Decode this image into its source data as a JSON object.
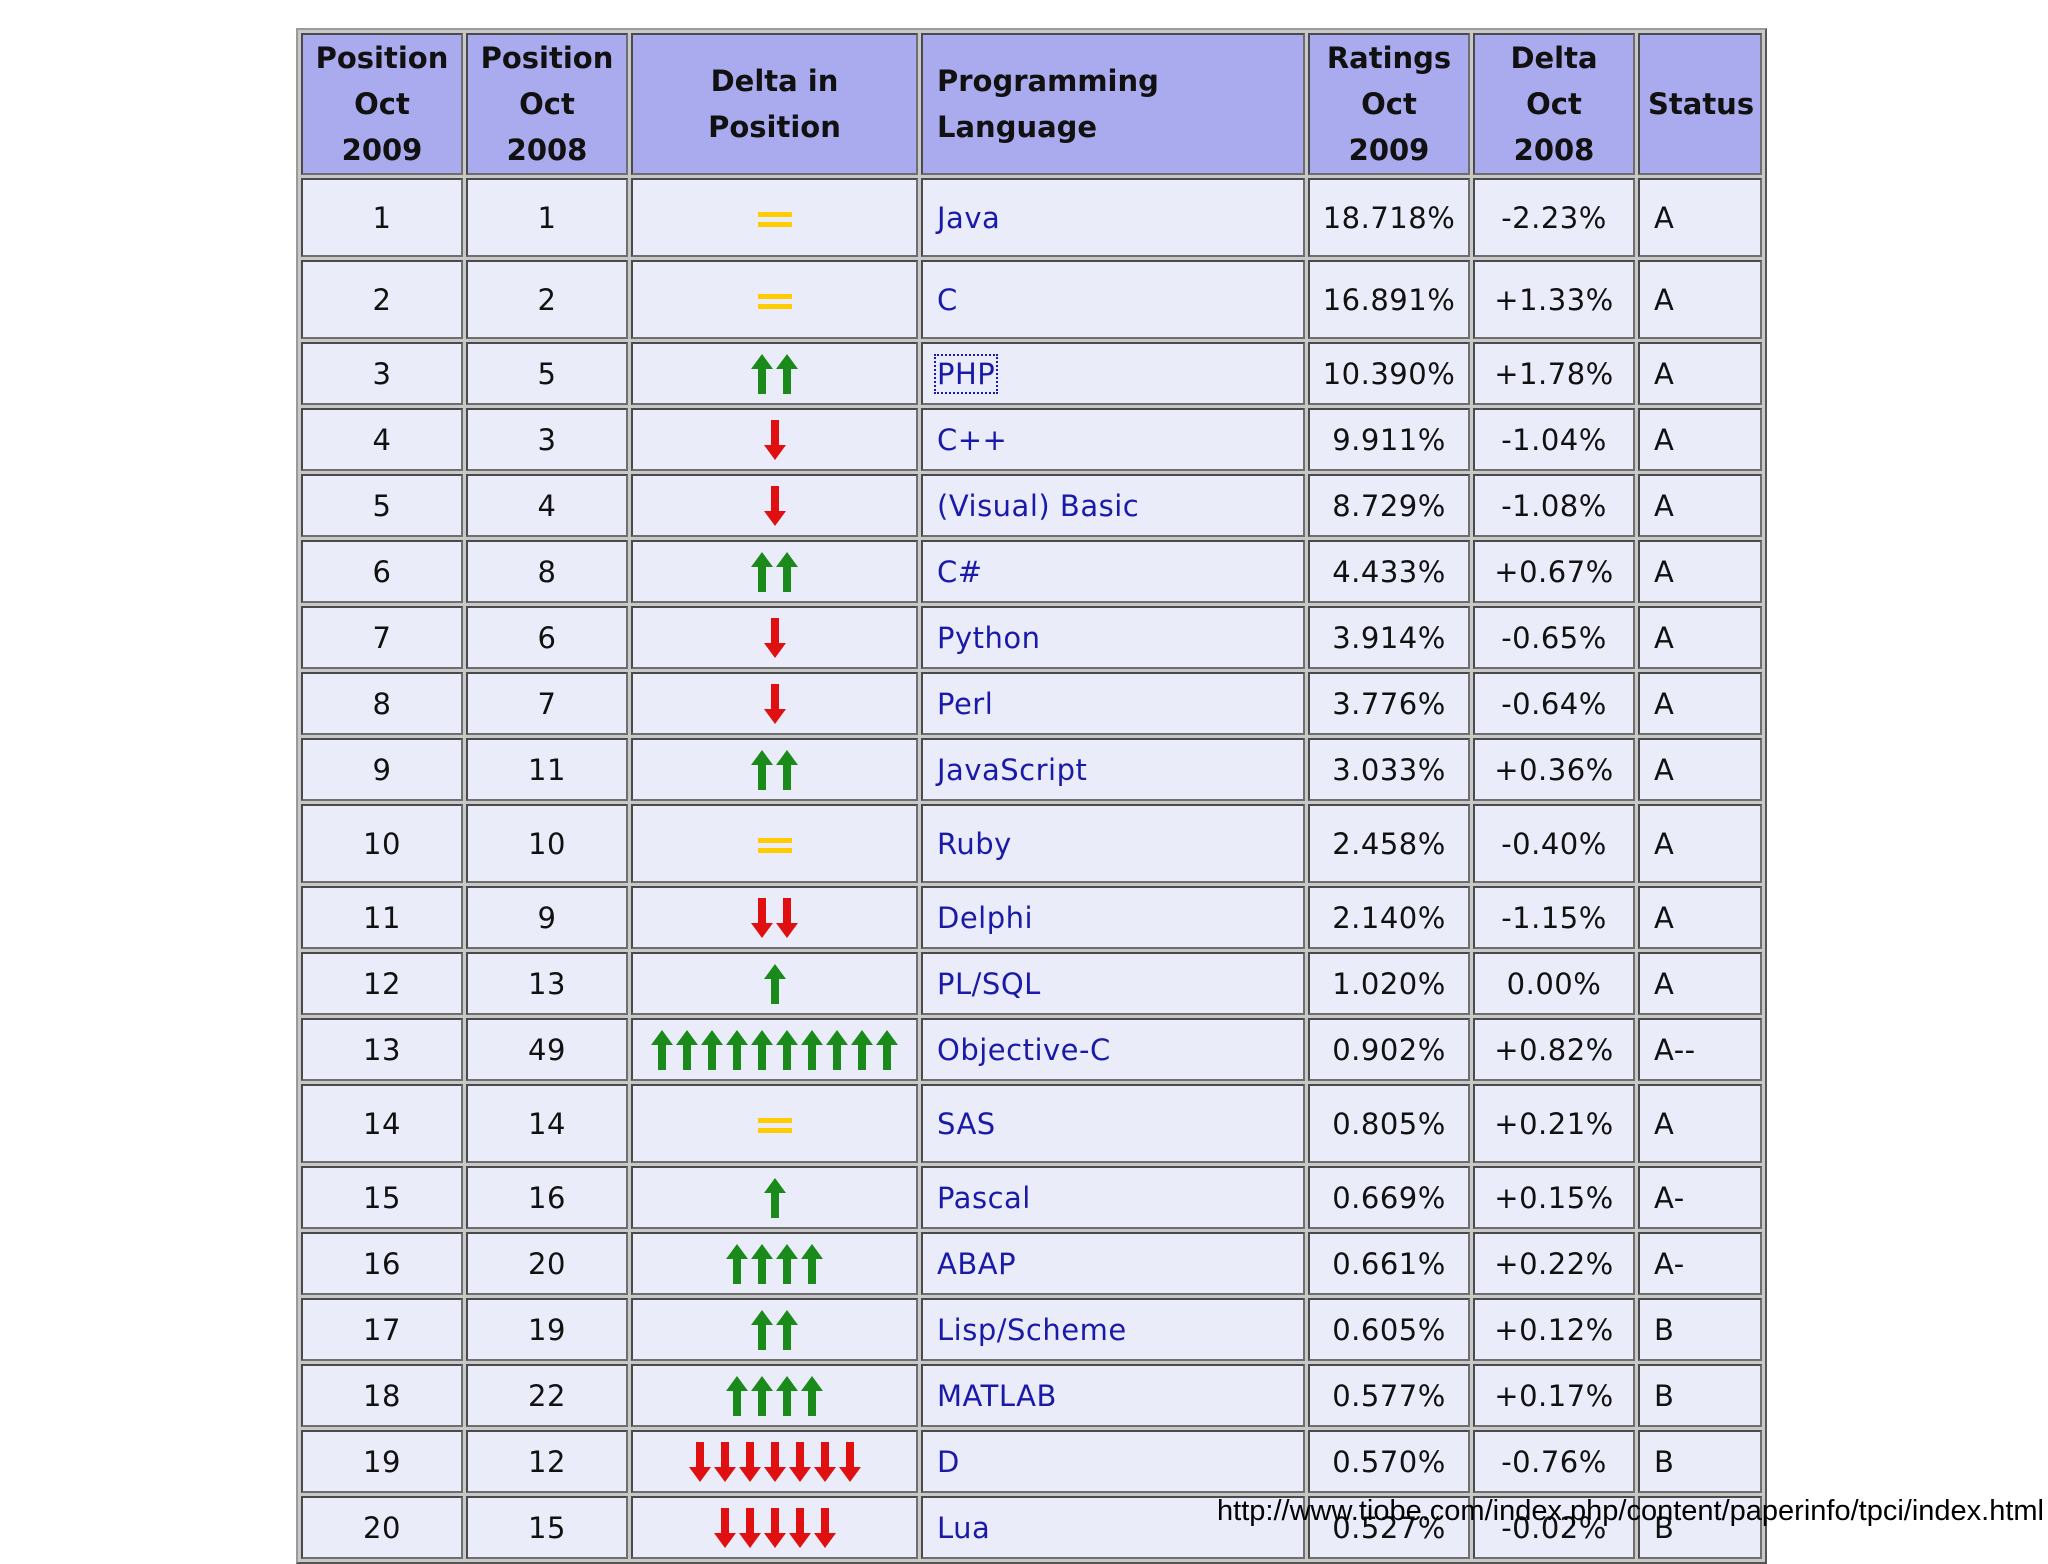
{
  "table": {
    "headers": [
      [
        "Position",
        "Oct 2009"
      ],
      [
        "Position",
        "Oct 2008"
      ],
      [
        "Delta in Position"
      ],
      [
        "Programming Language"
      ],
      [
        "Ratings",
        "Oct 2009"
      ],
      [
        "Delta",
        "Oct 2008"
      ],
      [
        "Status"
      ]
    ],
    "rows": [
      {
        "pos2009": "1",
        "pos2008": "1",
        "delta_icon": "equal",
        "delta_count": 1,
        "language": "Java",
        "rating": "18.718%",
        "delta": "-2.23%",
        "status": "A"
      },
      {
        "pos2009": "2",
        "pos2008": "2",
        "delta_icon": "equal",
        "delta_count": 1,
        "language": "C",
        "rating": "16.891%",
        "delta": "+1.33%",
        "status": "A"
      },
      {
        "pos2009": "3",
        "pos2008": "5",
        "delta_icon": "up",
        "delta_count": 2,
        "language": "PHP",
        "rating": "10.390%",
        "delta": "+1.78%",
        "status": "A",
        "focused": true
      },
      {
        "pos2009": "4",
        "pos2008": "3",
        "delta_icon": "down",
        "delta_count": 1,
        "language": "C++",
        "rating": "9.911%",
        "delta": "-1.04%",
        "status": "A"
      },
      {
        "pos2009": "5",
        "pos2008": "4",
        "delta_icon": "down",
        "delta_count": 1,
        "language": "(Visual) Basic",
        "rating": "8.729%",
        "delta": "-1.08%",
        "status": "A"
      },
      {
        "pos2009": "6",
        "pos2008": "8",
        "delta_icon": "up",
        "delta_count": 2,
        "language": "C#",
        "rating": "4.433%",
        "delta": "+0.67%",
        "status": "A"
      },
      {
        "pos2009": "7",
        "pos2008": "6",
        "delta_icon": "down",
        "delta_count": 1,
        "language": "Python",
        "rating": "3.914%",
        "delta": "-0.65%",
        "status": "A"
      },
      {
        "pos2009": "8",
        "pos2008": "7",
        "delta_icon": "down",
        "delta_count": 1,
        "language": "Perl",
        "rating": "3.776%",
        "delta": "-0.64%",
        "status": "A"
      },
      {
        "pos2009": "9",
        "pos2008": "11",
        "delta_icon": "up",
        "delta_count": 2,
        "language": "JavaScript",
        "rating": "3.033%",
        "delta": "+0.36%",
        "status": "A"
      },
      {
        "pos2009": "10",
        "pos2008": "10",
        "delta_icon": "equal",
        "delta_count": 1,
        "language": "Ruby",
        "rating": "2.458%",
        "delta": "-0.40%",
        "status": "A"
      },
      {
        "pos2009": "11",
        "pos2008": "9",
        "delta_icon": "down",
        "delta_count": 2,
        "language": "Delphi",
        "rating": "2.140%",
        "delta": "-1.15%",
        "status": "A"
      },
      {
        "pos2009": "12",
        "pos2008": "13",
        "delta_icon": "up",
        "delta_count": 1,
        "language": "PL/SQL",
        "rating": "1.020%",
        "delta": "0.00%",
        "status": "A"
      },
      {
        "pos2009": "13",
        "pos2008": "49",
        "delta_icon": "up",
        "delta_count": 10,
        "language": "Objective-C",
        "rating": "0.902%",
        "delta": "+0.82%",
        "status": "A--"
      },
      {
        "pos2009": "14",
        "pos2008": "14",
        "delta_icon": "equal",
        "delta_count": 1,
        "language": "SAS",
        "rating": "0.805%",
        "delta": "+0.21%",
        "status": "A"
      },
      {
        "pos2009": "15",
        "pos2008": "16",
        "delta_icon": "up",
        "delta_count": 1,
        "language": "Pascal",
        "rating": "0.669%",
        "delta": "+0.15%",
        "status": "A-"
      },
      {
        "pos2009": "16",
        "pos2008": "20",
        "delta_icon": "up",
        "delta_count": 4,
        "language": "ABAP",
        "rating": "0.661%",
        "delta": "+0.22%",
        "status": "A-"
      },
      {
        "pos2009": "17",
        "pos2008": "19",
        "delta_icon": "up",
        "delta_count": 2,
        "language": "Lisp/Scheme",
        "rating": "0.605%",
        "delta": "+0.12%",
        "status": "B"
      },
      {
        "pos2009": "18",
        "pos2008": "22",
        "delta_icon": "up",
        "delta_count": 4,
        "language": "MATLAB",
        "rating": "0.577%",
        "delta": "+0.17%",
        "status": "B"
      },
      {
        "pos2009": "19",
        "pos2008": "12",
        "delta_icon": "down",
        "delta_count": 7,
        "language": "D",
        "rating": "0.570%",
        "delta": "-0.76%",
        "status": "B"
      },
      {
        "pos2009": "20",
        "pos2008": "15",
        "delta_icon": "down",
        "delta_count": 5,
        "language": "Lua",
        "rating": "0.527%",
        "delta": "-0.02%",
        "status": "B"
      }
    ]
  },
  "source_url": "http://www.tiobe.com/index.php/content/paperinfo/tpci/index.html",
  "colors": {
    "header_bg": "#aaaaee",
    "cell_bg": "#eaecfa",
    "link": "#1a1aa8",
    "up_arrow": "#1a8a1a",
    "down_arrow": "#e01010",
    "equal_sign": "#ffcc00"
  }
}
